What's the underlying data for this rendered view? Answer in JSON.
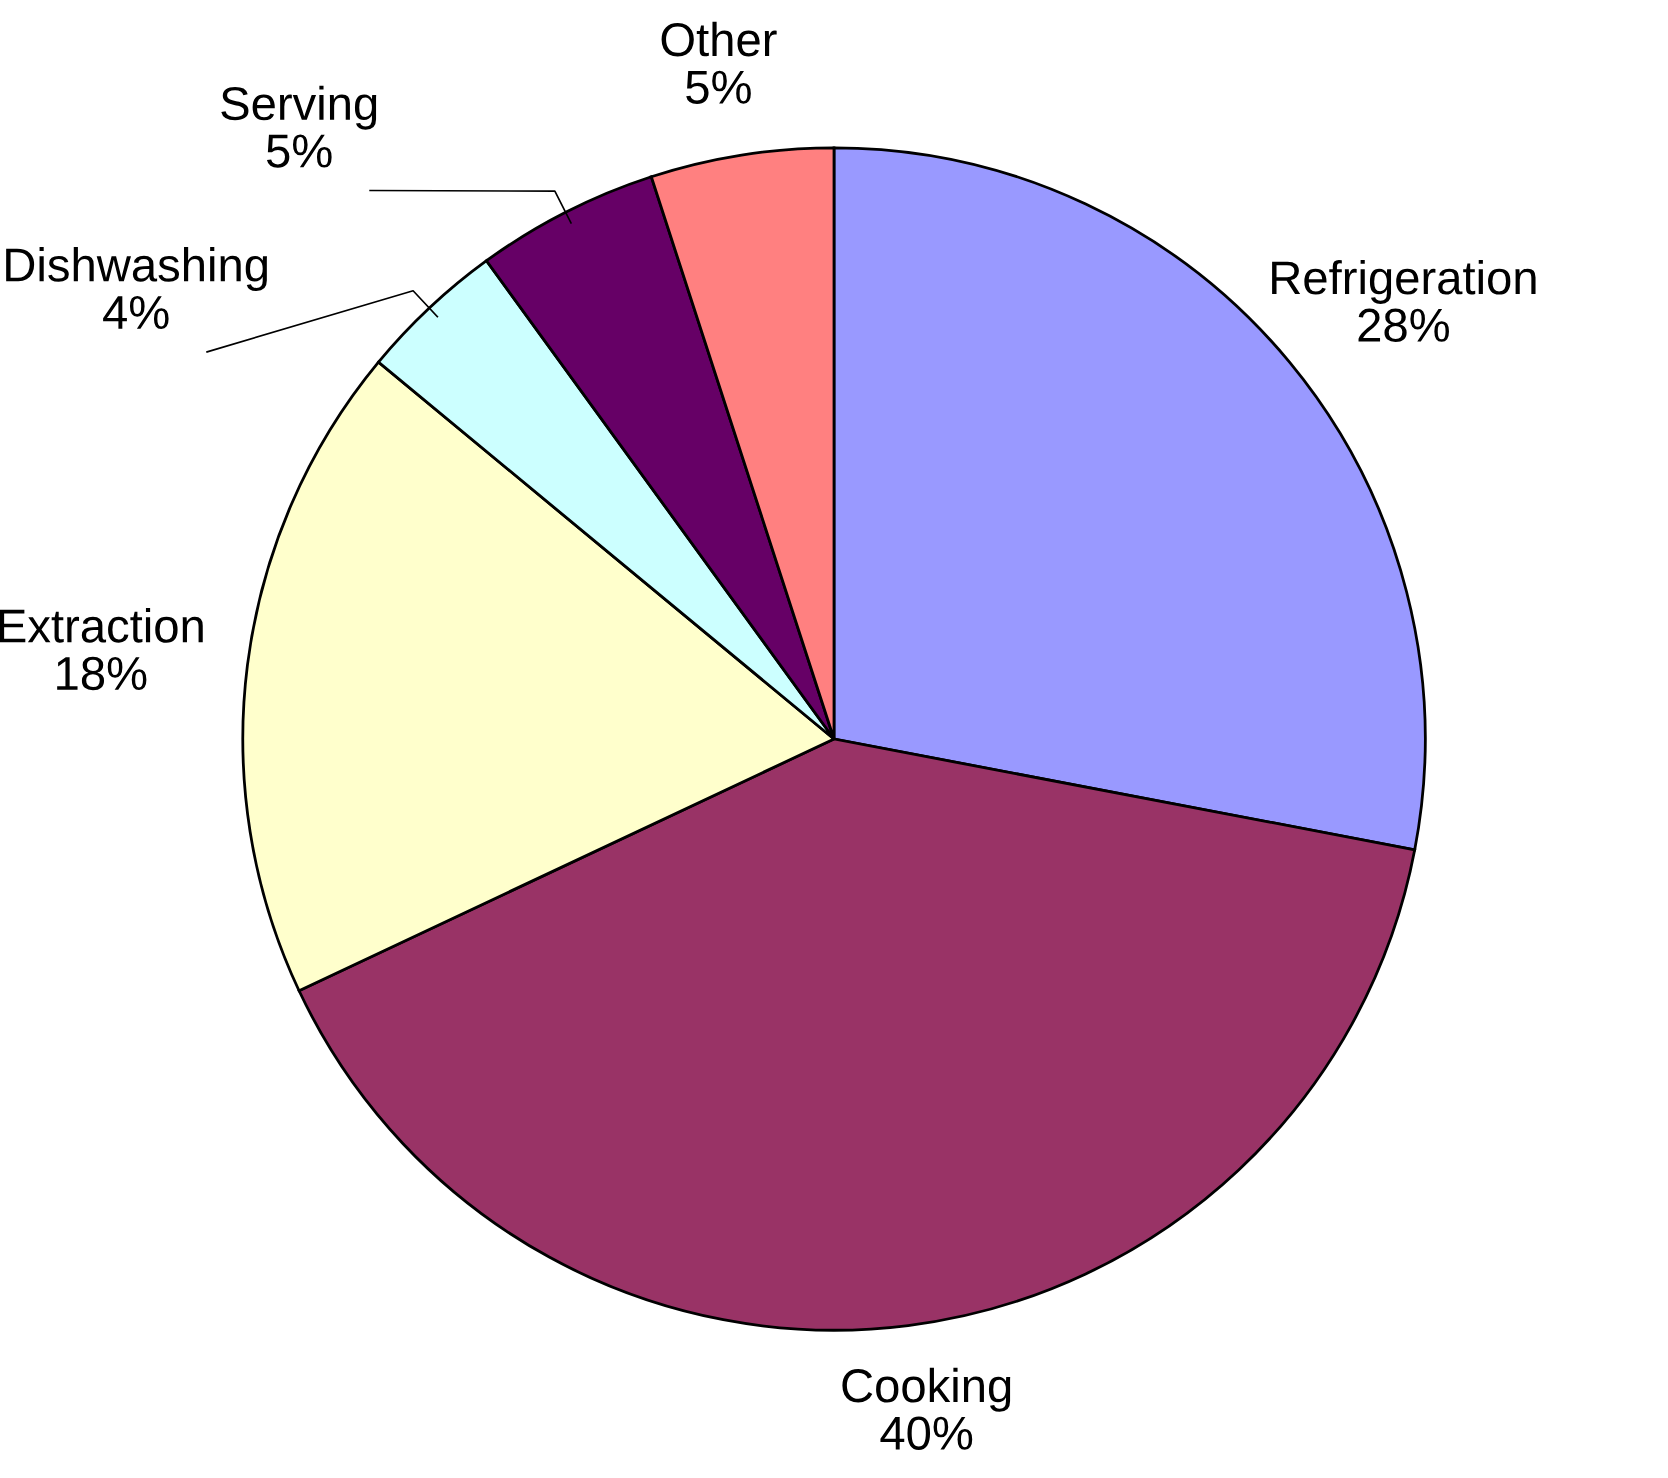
{
  "chart_data": {
    "type": "pie",
    "categories": [
      "Refrigeration",
      "Cooking",
      "Extraction",
      "Dishwashing",
      "Serving",
      "Other"
    ],
    "values": [
      28,
      40,
      18,
      4,
      5,
      5
    ],
    "value_labels": [
      "28%",
      "40%",
      "18%",
      "4%",
      "5%",
      "5%"
    ],
    "colors": [
      "#9999ff",
      "#993366",
      "#ffffcc",
      "#ccffff",
      "#660066",
      "#ff8080"
    ],
    "legend": false
  }
}
